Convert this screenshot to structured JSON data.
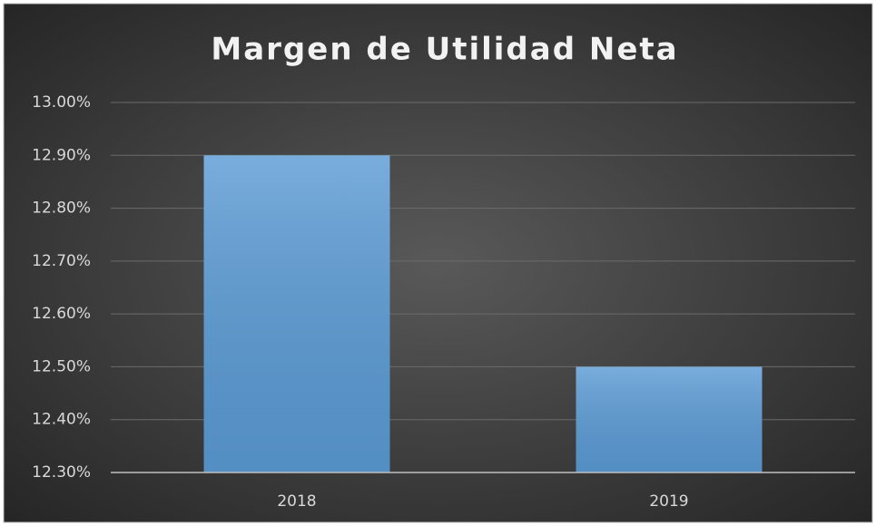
{
  "chart_data": {
    "type": "bar",
    "title": "Margen de Utilidad Neta",
    "categories": [
      "2018",
      "2019"
    ],
    "values": [
      12.9,
      12.5
    ],
    "color": "#5b9bd5",
    "ylim": [
      12.3,
      13.0
    ],
    "yticks": [
      {
        "value": 12.3,
        "label": "12.30%"
      },
      {
        "value": 12.4,
        "label": "12.40%"
      },
      {
        "value": 12.5,
        "label": "12.50%"
      },
      {
        "value": 12.6,
        "label": "12.60%"
      },
      {
        "value": 12.7,
        "label": "12.70%"
      },
      {
        "value": 12.8,
        "label": "12.80%"
      },
      {
        "value": 12.9,
        "label": "12.90%"
      },
      {
        "value": 13.0,
        "label": "13.00%"
      }
    ],
    "grid": true
  }
}
